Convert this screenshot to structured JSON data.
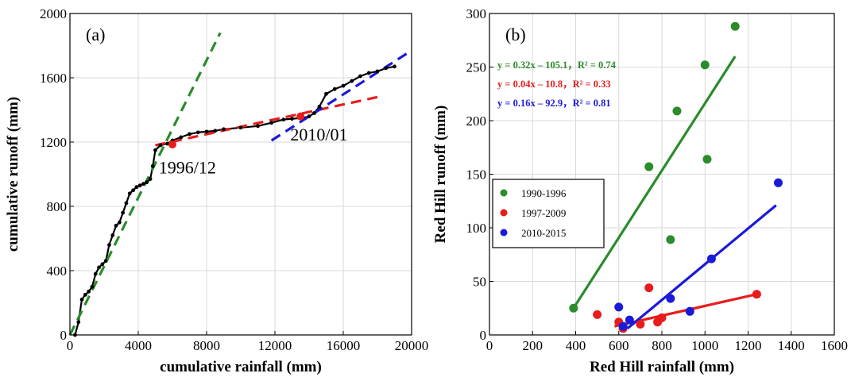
{
  "chart_data": [
    {
      "type": "line",
      "panel_label": "(a)",
      "xlabel": "cumulative rainfall (mm)",
      "ylabel": "cumulative runoff (mm)",
      "xlim": [
        0,
        20000
      ],
      "ylim": [
        0,
        2000
      ],
      "xticks": [
        0,
        4000,
        8000,
        12000,
        16000,
        20000
      ],
      "yticks": [
        0,
        400,
        800,
        1200,
        1600,
        2000
      ],
      "tick_labels_x": [
        "0",
        "4000",
        "8000",
        "12000",
        "16000",
        "20000"
      ],
      "tick_labels_y": [
        "0",
        "400",
        "800",
        "1200",
        "1600",
        "2000"
      ],
      "grid": true,
      "series": [
        {
          "color": "#000000",
          "style": "line-markers",
          "x": [
            300,
            500,
            700,
            900,
            1100,
            1300,
            1500,
            1700,
            1900,
            2100,
            2300,
            2500,
            2700,
            2900,
            3100,
            3300,
            3500,
            3700,
            3900,
            4100,
            4300,
            4500,
            4700,
            4850,
            5000,
            5300,
            5700,
            6000,
            6500,
            7000,
            7500,
            8000,
            8500,
            9000,
            10000,
            11000,
            11800,
            12500,
            13000,
            13600,
            14000,
            14300,
            14600,
            15000,
            15500,
            16000,
            16500,
            17000,
            17500,
            18000,
            18500,
            19000
          ],
          "y": [
            0,
            80,
            220,
            250,
            270,
            300,
            380,
            420,
            440,
            460,
            560,
            620,
            680,
            700,
            760,
            820,
            880,
            900,
            920,
            930,
            940,
            950,
            970,
            1050,
            1150,
            1180,
            1190,
            1210,
            1230,
            1250,
            1260,
            1265,
            1270,
            1280,
            1290,
            1300,
            1320,
            1340,
            1345,
            1350,
            1360,
            1380,
            1420,
            1500,
            1530,
            1550,
            1580,
            1610,
            1630,
            1640,
            1660,
            1670
          ]
        },
        {
          "color": "#2a8c2a",
          "style": "dashed",
          "x": [
            0,
            8800
          ],
          "y": [
            0,
            1880
          ]
        },
        {
          "color": "#e81c1c",
          "style": "dashed",
          "x": [
            5000,
            18000
          ],
          "y": [
            1180,
            1480
          ]
        },
        {
          "color": "#1a1ad8",
          "style": "dashed",
          "x": [
            11800,
            20000
          ],
          "y": [
            1210,
            1770
          ]
        }
      ],
      "highlight_points": [
        {
          "x": 6000,
          "y": 1185,
          "color": "#e81c1c"
        },
        {
          "x": 13500,
          "y": 1360,
          "color": "#e81c1c"
        }
      ],
      "annotations": [
        {
          "text": "1996/12",
          "x": 5200,
          "y": 1005
        },
        {
          "text": "2010/01",
          "x": 12900,
          "y": 1210
        }
      ]
    },
    {
      "type": "scatter",
      "panel_label": "(b)",
      "xlabel": "Red Hill rainfall (mm)",
      "ylabel": "Red Hill runoff (mm)",
      "xlim": [
        0,
        1600
      ],
      "ylim": [
        0,
        300
      ],
      "xticks": [
        0,
        200,
        400,
        600,
        800,
        1000,
        1200,
        1400,
        1600
      ],
      "yticks": [
        0,
        50,
        100,
        150,
        200,
        250,
        300
      ],
      "tick_labels_x": [
        "0",
        "200",
        "400",
        "600",
        "800",
        "1000",
        "1200",
        "1400",
        "1600"
      ],
      "tick_labels_y": [
        "0",
        "50",
        "100",
        "150",
        "200",
        "250",
        "300"
      ],
      "grid": true,
      "legend_position": "middle-left",
      "series": [
        {
          "name": "1990-1996",
          "color": "#2a8c2a",
          "x": [
            390,
            740,
            840,
            870,
            1000,
            1010,
            1140
          ],
          "y": [
            25,
            157,
            89,
            209,
            252,
            164,
            288
          ],
          "fit": {
            "x": [
              390,
              1140
            ],
            "y": [
              25,
              260
            ]
          },
          "equation": "y = 0.32x – 105.1，R² = 0.74"
        },
        {
          "name": "1997-2009",
          "color": "#e81c1c",
          "x": [
            500,
            600,
            620,
            700,
            740,
            780,
            800,
            1240
          ],
          "y": [
            19,
            12,
            6,
            10,
            44,
            12,
            16,
            38
          ],
          "fit": {
            "x": [
              580,
              1240
            ],
            "y": [
              8,
              38
            ]
          },
          "equation": "y = 0.04x – 10.8，R² = 0.33"
        },
        {
          "name": "2010-2015",
          "color": "#1a1ad8",
          "x": [
            600,
            620,
            650,
            840,
            930,
            1030,
            1340
          ],
          "y": [
            26,
            8,
            14,
            34,
            22,
            71,
            142
          ],
          "fit": {
            "x": [
              640,
              1330
            ],
            "y": [
              6,
              121
            ]
          },
          "equation": "y = 0.16x – 92.9，R² = 0.81"
        }
      ]
    }
  ]
}
